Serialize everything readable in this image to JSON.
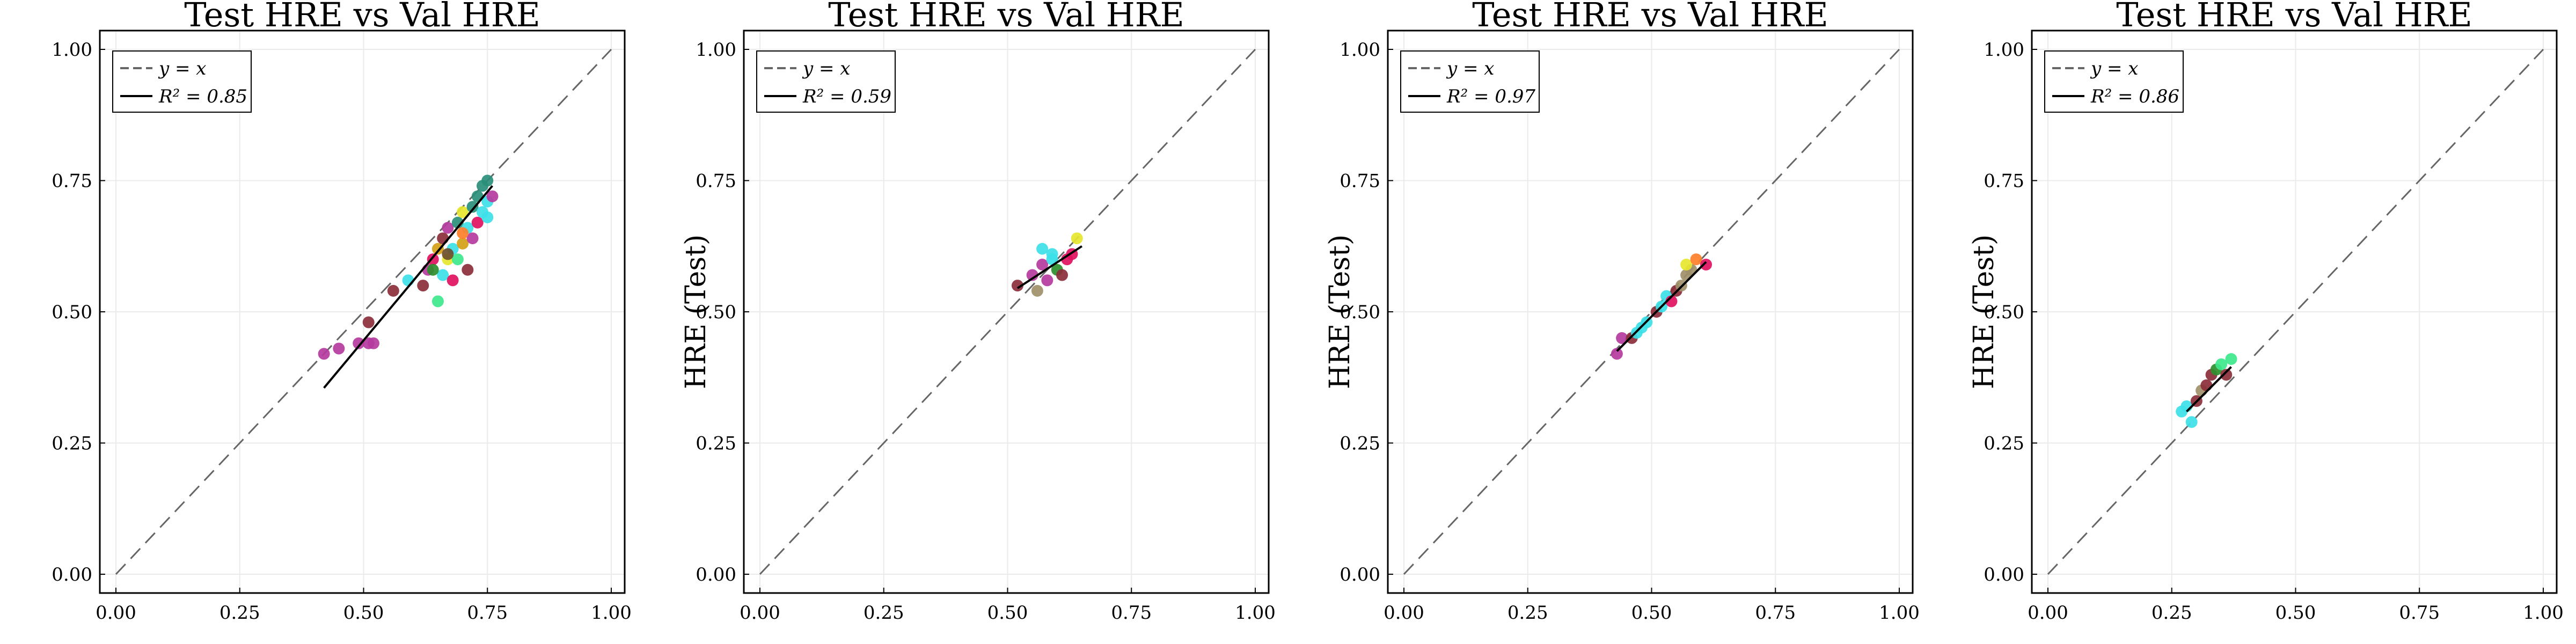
{
  "chart_data": [
    {
      "type": "scatter",
      "title": "Test HRE  vs Val HRE",
      "xlabel": "",
      "ylabel": "",
      "xlim": [
        0,
        1
      ],
      "ylim": [
        0,
        1
      ],
      "xticks": [
        "0.00",
        "0.25",
        "0.50",
        "0.75",
        "1.00"
      ],
      "yticks": [
        "0.00",
        "0.25",
        "0.50",
        "0.75",
        "1.00"
      ],
      "grid": true,
      "legend_position": "top-left",
      "legend": [
        {
          "label": "y = x",
          "style": "dashed",
          "color": "#666666"
        },
        {
          "label": "R² = 0.85",
          "style": "solid",
          "color": "#000000"
        }
      ],
      "fit_line": {
        "x": [
          0.42,
          0.76
        ],
        "y": [
          0.355,
          0.74
        ]
      },
      "points": [
        {
          "x": 0.42,
          "y": 0.42,
          "color": "#b5399e"
        },
        {
          "x": 0.45,
          "y": 0.43,
          "color": "#b5399e"
        },
        {
          "x": 0.49,
          "y": 0.44,
          "color": "#b5399e"
        },
        {
          "x": 0.51,
          "y": 0.44,
          "color": "#b5399e"
        },
        {
          "x": 0.52,
          "y": 0.44,
          "color": "#b5399e"
        },
        {
          "x": 0.51,
          "y": 0.48,
          "color": "#8b2e3a"
        },
        {
          "x": 0.56,
          "y": 0.54,
          "color": "#8b2e3a"
        },
        {
          "x": 0.59,
          "y": 0.56,
          "color": "#3de0e8"
        },
        {
          "x": 0.62,
          "y": 0.55,
          "color": "#8b2e3a"
        },
        {
          "x": 0.63,
          "y": 0.58,
          "color": "#b5399e"
        },
        {
          "x": 0.64,
          "y": 0.6,
          "color": "#e0115f"
        },
        {
          "x": 0.65,
          "y": 0.52,
          "color": "#3de88c"
        },
        {
          "x": 0.65,
          "y": 0.62,
          "color": "#d4a017"
        },
        {
          "x": 0.66,
          "y": 0.57,
          "color": "#3de0e8"
        },
        {
          "x": 0.66,
          "y": 0.64,
          "color": "#8b2e3a"
        },
        {
          "x": 0.67,
          "y": 0.6,
          "color": "#e6e62e"
        },
        {
          "x": 0.67,
          "y": 0.66,
          "color": "#b5399e"
        },
        {
          "x": 0.68,
          "y": 0.56,
          "color": "#e0115f"
        },
        {
          "x": 0.68,
          "y": 0.62,
          "color": "#3de0e8"
        },
        {
          "x": 0.69,
          "y": 0.67,
          "color": "#2a8f7a"
        },
        {
          "x": 0.69,
          "y": 0.6,
          "color": "#3de88c"
        },
        {
          "x": 0.7,
          "y": 0.69,
          "color": "#e6e62e"
        },
        {
          "x": 0.7,
          "y": 0.63,
          "color": "#d4a017"
        },
        {
          "x": 0.71,
          "y": 0.66,
          "color": "#3de0e8"
        },
        {
          "x": 0.71,
          "y": 0.58,
          "color": "#8b2e3a"
        },
        {
          "x": 0.72,
          "y": 0.7,
          "color": "#2a8f7a"
        },
        {
          "x": 0.72,
          "y": 0.64,
          "color": "#b5399e"
        },
        {
          "x": 0.73,
          "y": 0.67,
          "color": "#e0115f"
        },
        {
          "x": 0.73,
          "y": 0.72,
          "color": "#2a8f7a"
        },
        {
          "x": 0.74,
          "y": 0.74,
          "color": "#2a8f7a"
        },
        {
          "x": 0.74,
          "y": 0.69,
          "color": "#3de0e8"
        },
        {
          "x": 0.75,
          "y": 0.75,
          "color": "#2a8f7a"
        },
        {
          "x": 0.75,
          "y": 0.71,
          "color": "#3de0e8"
        },
        {
          "x": 0.76,
          "y": 0.72,
          "color": "#b5399e"
        },
        {
          "x": 0.75,
          "y": 0.68,
          "color": "#3de0e8"
        },
        {
          "x": 0.64,
          "y": 0.58,
          "color": "#2c8f2c"
        },
        {
          "x": 0.7,
          "y": 0.65,
          "color": "#ff7f2a"
        },
        {
          "x": 0.67,
          "y": 0.61,
          "color": "#6b4e2e"
        }
      ]
    },
    {
      "type": "scatter",
      "title": "Test HRE  vs Val HRE",
      "xlabel": "",
      "ylabel": "HRE (Test)",
      "xlim": [
        0,
        1
      ],
      "ylim": [
        0,
        1
      ],
      "xticks": [
        "0.00",
        "0.25",
        "0.50",
        "0.75",
        "1.00"
      ],
      "yticks": [
        "0.00",
        "0.25",
        "0.50",
        "0.75",
        "1.00"
      ],
      "grid": true,
      "legend_position": "top-left",
      "legend": [
        {
          "label": "y = x",
          "style": "dashed",
          "color": "#666666"
        },
        {
          "label": "R² = 0.59",
          "style": "solid",
          "color": "#000000"
        }
      ],
      "fit_line": {
        "x": [
          0.52,
          0.65
        ],
        "y": [
          0.545,
          0.625
        ]
      },
      "points": [
        {
          "x": 0.52,
          "y": 0.55,
          "color": "#8b2e3a"
        },
        {
          "x": 0.55,
          "y": 0.57,
          "color": "#b5399e"
        },
        {
          "x": 0.56,
          "y": 0.54,
          "color": "#a0906a"
        },
        {
          "x": 0.57,
          "y": 0.59,
          "color": "#b5399e"
        },
        {
          "x": 0.57,
          "y": 0.62,
          "color": "#3de0e8"
        },
        {
          "x": 0.58,
          "y": 0.56,
          "color": "#b5399e"
        },
        {
          "x": 0.59,
          "y": 0.6,
          "color": "#3de0e8"
        },
        {
          "x": 0.59,
          "y": 0.61,
          "color": "#3de0e8"
        },
        {
          "x": 0.6,
          "y": 0.58,
          "color": "#2c8f2c"
        },
        {
          "x": 0.61,
          "y": 0.57,
          "color": "#8b2e3a"
        },
        {
          "x": 0.62,
          "y": 0.6,
          "color": "#e0115f"
        },
        {
          "x": 0.63,
          "y": 0.61,
          "color": "#e0115f"
        },
        {
          "x": 0.64,
          "y": 0.64,
          "color": "#e6e62e"
        }
      ]
    },
    {
      "type": "scatter",
      "title": "Test HRE  vs Val HRE",
      "xlabel": "",
      "ylabel": "HRE (Test)",
      "xlim": [
        0,
        1
      ],
      "ylim": [
        0,
        1
      ],
      "xticks": [
        "0.00",
        "0.25",
        "0.50",
        "0.75",
        "1.00"
      ],
      "yticks": [
        "0.00",
        "0.25",
        "0.50",
        "0.75",
        "1.00"
      ],
      "grid": true,
      "legend_position": "top-left",
      "legend": [
        {
          "label": "y = x",
          "style": "dashed",
          "color": "#666666"
        },
        {
          "label": "R² = 0.97",
          "style": "solid",
          "color": "#000000"
        }
      ],
      "fit_line": {
        "x": [
          0.43,
          0.61
        ],
        "y": [
          0.425,
          0.595
        ]
      },
      "points": [
        {
          "x": 0.43,
          "y": 0.42,
          "color": "#b5399e"
        },
        {
          "x": 0.44,
          "y": 0.45,
          "color": "#b5399e"
        },
        {
          "x": 0.46,
          "y": 0.45,
          "color": "#8b2e3a"
        },
        {
          "x": 0.47,
          "y": 0.46,
          "color": "#3de0e8"
        },
        {
          "x": 0.48,
          "y": 0.47,
          "color": "#3de0e8"
        },
        {
          "x": 0.49,
          "y": 0.48,
          "color": "#3de0e8"
        },
        {
          "x": 0.51,
          "y": 0.5,
          "color": "#8b2e3a"
        },
        {
          "x": 0.52,
          "y": 0.51,
          "color": "#3de0e8"
        },
        {
          "x": 0.53,
          "y": 0.53,
          "color": "#3de0e8"
        },
        {
          "x": 0.54,
          "y": 0.52,
          "color": "#e0115f"
        },
        {
          "x": 0.55,
          "y": 0.54,
          "color": "#8b2e3a"
        },
        {
          "x": 0.56,
          "y": 0.55,
          "color": "#a0906a"
        },
        {
          "x": 0.57,
          "y": 0.57,
          "color": "#a0906a"
        },
        {
          "x": 0.58,
          "y": 0.58,
          "color": "#a0906a"
        },
        {
          "x": 0.57,
          "y": 0.59,
          "color": "#e6e62e"
        },
        {
          "x": 0.59,
          "y": 0.6,
          "color": "#ff7f2a"
        },
        {
          "x": 0.61,
          "y": 0.59,
          "color": "#e0115f"
        }
      ]
    },
    {
      "type": "scatter",
      "title": "Test HRE  vs Val HRE",
      "xlabel": "",
      "ylabel": "HRE (Test)",
      "xlim": [
        0,
        1
      ],
      "ylim": [
        0,
        1
      ],
      "xticks": [
        "0.00",
        "0.25",
        "0.50",
        "0.75",
        "1.00"
      ],
      "yticks": [
        "0.00",
        "0.25",
        "0.50",
        "0.75",
        "1.00"
      ],
      "grid": true,
      "legend_position": "top-left",
      "legend": [
        {
          "label": "y = x",
          "style": "dashed",
          "color": "#666666"
        },
        {
          "label": "R² = 0.86",
          "style": "solid",
          "color": "#000000"
        }
      ],
      "fit_line": {
        "x": [
          0.28,
          0.37
        ],
        "y": [
          0.31,
          0.395
        ]
      },
      "points": [
        {
          "x": 0.27,
          "y": 0.31,
          "color": "#3de0e8"
        },
        {
          "x": 0.28,
          "y": 0.32,
          "color": "#3de0e8"
        },
        {
          "x": 0.29,
          "y": 0.29,
          "color": "#3de0e8"
        },
        {
          "x": 0.3,
          "y": 0.33,
          "color": "#8b2e3a"
        },
        {
          "x": 0.31,
          "y": 0.35,
          "color": "#a0906a"
        },
        {
          "x": 0.32,
          "y": 0.36,
          "color": "#8b2e3a"
        },
        {
          "x": 0.33,
          "y": 0.38,
          "color": "#8b2e3a"
        },
        {
          "x": 0.34,
          "y": 0.39,
          "color": "#2c8f2c"
        },
        {
          "x": 0.35,
          "y": 0.4,
          "color": "#3de88c"
        },
        {
          "x": 0.36,
          "y": 0.38,
          "color": "#8b2e3a"
        },
        {
          "x": 0.37,
          "y": 0.41,
          "color": "#3de88c"
        }
      ]
    }
  ]
}
